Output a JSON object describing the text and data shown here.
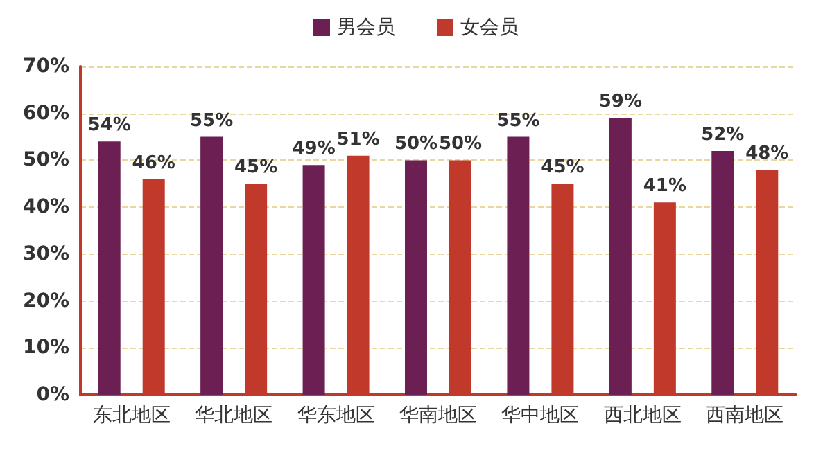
{
  "chart_data": {
    "type": "bar",
    "categories": [
      "东北地区",
      "华北地区",
      "华东地区",
      "华南地区",
      "华中地区",
      "西北地区",
      "西南地区"
    ],
    "series": [
      {
        "name": "男会员",
        "color": "#6b1f52",
        "values": [
          54,
          55,
          49,
          50,
          55,
          59,
          52
        ],
        "value_labels": [
          "54%",
          "55%",
          "49%",
          "50%",
          "55%",
          "59%",
          "52%"
        ]
      },
      {
        "name": "女会员",
        "color": "#c0392b",
        "values": [
          46,
          45,
          51,
          50,
          45,
          41,
          48
        ],
        "value_labels": [
          "46%",
          "45%",
          "51%",
          "50%",
          "45%",
          "41%",
          "48%"
        ]
      }
    ],
    "ylim": [
      0,
      70
    ],
    "yticks": [
      {
        "value": 0,
        "label": "0%"
      },
      {
        "value": 10,
        "label": "10%"
      },
      {
        "value": 20,
        "label": "20%"
      },
      {
        "value": 30,
        "label": "30%"
      },
      {
        "value": 40,
        "label": "40%"
      },
      {
        "value": 50,
        "label": "50%"
      },
      {
        "value": 60,
        "label": "60%"
      },
      {
        "value": 70,
        "label": "70%"
      }
    ],
    "grid": "y",
    "legend": "top"
  }
}
